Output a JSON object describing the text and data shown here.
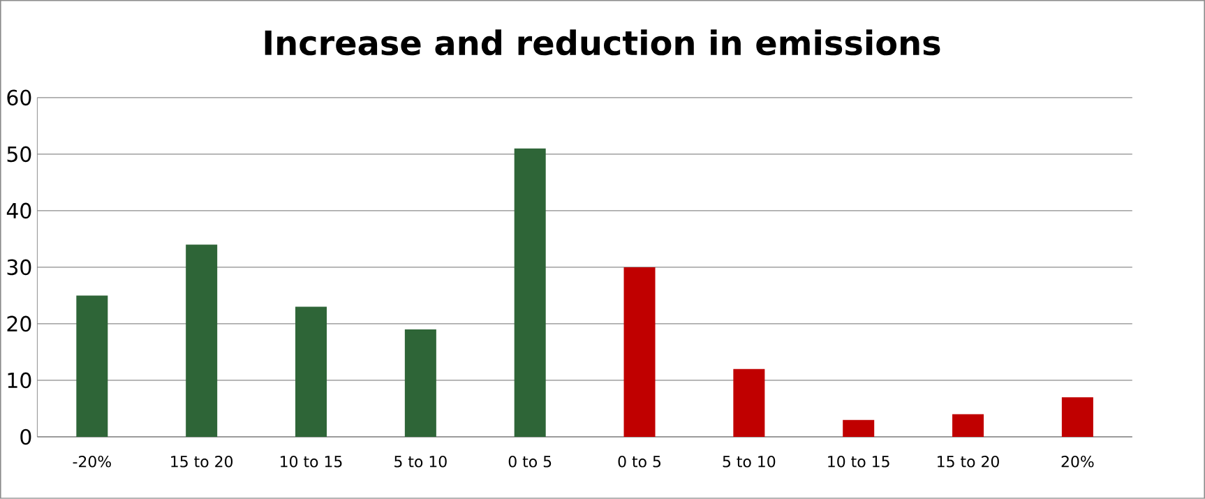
{
  "chart_data": {
    "type": "bar",
    "title": "Increase and reduction in emissions",
    "categories": [
      "-20%",
      "15 to 20",
      "10 to 15",
      "5 to 10",
      "0 to 5",
      "0 to 5",
      "5 to 10",
      "10 to 15",
      "15 to 20",
      "20%"
    ],
    "values": [
      25,
      34,
      23,
      19,
      51,
      30,
      12,
      3,
      4,
      7
    ],
    "colors": [
      "#2e6537",
      "#2e6537",
      "#2e6537",
      "#2e6537",
      "#2e6537",
      "#c00000",
      "#c00000",
      "#c00000",
      "#c00000",
      "#c00000"
    ],
    "ylim": [
      0,
      60
    ],
    "yticks": [
      0,
      10,
      20,
      30,
      40,
      50,
      60
    ],
    "grid": "y"
  }
}
